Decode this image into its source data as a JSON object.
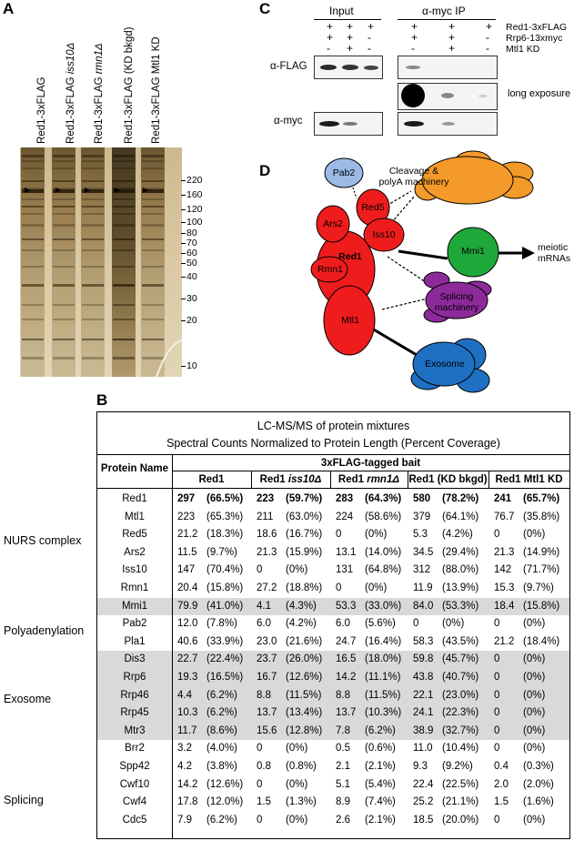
{
  "panel_a": {
    "letter": "A",
    "lanes": [
      {
        "plain": "Red1-3xFLAG",
        "italic": ""
      },
      {
        "plain": "Red1-3xFLAG ",
        "italic": "iss10Δ"
      },
      {
        "plain": "Red1-3xFLAG ",
        "italic": "rmn1Δ"
      },
      {
        "plain": "Red1-3xFLAG (KD bkgd)",
        "italic": ""
      },
      {
        "plain": "Red1-3xFLAG Mtl1 KD",
        "italic": ""
      }
    ],
    "markers": [
      "220",
      "160",
      "120",
      "100",
      "80",
      "70",
      "60",
      "50",
      "40",
      "30",
      "20",
      "10"
    ]
  },
  "panel_c": {
    "letter": "C",
    "input_header": "Input",
    "ip_header": "α-myc IP",
    "row_labels": [
      "Red1-3xFLAG",
      "Rrp6-13xmyc",
      "Mtl1 KD"
    ],
    "input_signs": [
      [
        "+",
        "+",
        "+"
      ],
      [
        "+",
        "+",
        "-"
      ],
      [
        "-",
        "+",
        "-"
      ]
    ],
    "ip_signs": [
      [
        "+",
        "+",
        "+"
      ],
      [
        "+",
        "+",
        "-"
      ],
      [
        "-",
        "+",
        "-"
      ]
    ],
    "blot_flag": "α-FLAG",
    "blot_long": "long exposure",
    "blot_myc": "α-myc"
  },
  "panel_d": {
    "letter": "D",
    "nodes": {
      "red1": "Red1",
      "ars2": "Ars2",
      "red5": "Red5",
      "iss10": "Iss10",
      "rmn1": "Rmn1",
      "mtl1": "Mtl1",
      "pab2": "Pab2",
      "cleavage": "Cleavage &\npolyA machinery",
      "mmi1": "Mmi1",
      "splicing": "Splicing\nmachinery",
      "exosome": "Exosome"
    },
    "target": "meiotic\nmRNAs"
  },
  "panel_b": {
    "letter": "B",
    "title1": "LC-MS/MS of protein mixtures",
    "title2": "Spectral Counts Normalized to Protein Length (Percent Coverage)",
    "bait_header": "3xFLAG-tagged bait",
    "protein_header": "Protein Name",
    "columns": [
      {
        "plain": "Red1",
        "italic": ""
      },
      {
        "plain": "Red1 ",
        "italic": "iss10Δ"
      },
      {
        "plain": "Red1 ",
        "italic": "rmn1Δ"
      },
      {
        "plain": "Red1 (KD bkgd)",
        "italic": ""
      },
      {
        "plain": "Red1 Mtl1 KD",
        "italic": ""
      }
    ],
    "groups": [
      "NURS complex",
      "Polyadenylation",
      "Exosome",
      "Splicing"
    ],
    "rows": [
      {
        "name": "Red1",
        "values": [
          "297",
          "223",
          "283",
          "580",
          "241"
        ],
        "pcts": [
          "(66.5%)",
          "(59.7%)",
          "(64.3%)",
          "(78.2%)",
          "(65.7%)"
        ],
        "bold": true,
        "shaded": false
      },
      {
        "name": "Mtl1",
        "values": [
          "223",
          "211",
          "224",
          "379",
          "76.7"
        ],
        "pcts": [
          "(65.3%)",
          "(63.0%)",
          "(58.6%)",
          "(64.1%)",
          "(35.8%)"
        ],
        "bold": false,
        "shaded": false
      },
      {
        "name": "Red5",
        "values": [
          "21.2",
          "18.6",
          "0",
          "5.3",
          "0"
        ],
        "pcts": [
          "(18.3%)",
          "(16.7%)",
          "(0%)",
          "(4.2%)",
          "(0%)"
        ],
        "bold": false,
        "shaded": false
      },
      {
        "name": "Ars2",
        "values": [
          "11.5",
          "21.3",
          "13.1",
          "34.5",
          "21.3"
        ],
        "pcts": [
          "(9.7%)",
          "(15.9%)",
          "(14.0%)",
          "(29.4%)",
          "(14.9%)"
        ],
        "bold": false,
        "shaded": false
      },
      {
        "name": "Iss10",
        "values": [
          "147",
          "0",
          "131",
          "312",
          "142"
        ],
        "pcts": [
          "(70.4%)",
          "(0%)",
          "(64.8%)",
          "(88.0%)",
          "(71.7%)"
        ],
        "bold": false,
        "shaded": false
      },
      {
        "name": "Rmn1",
        "values": [
          "20.4",
          "27.2",
          "0",
          "11.9",
          "15.3"
        ],
        "pcts": [
          "(15.8%)",
          "(18.8%)",
          "(0%)",
          "(13.9%)",
          "(9.7%)"
        ],
        "bold": false,
        "shaded": false
      },
      {
        "name": "Mmi1",
        "values": [
          "79.9",
          "4.1",
          "53.3",
          "84.0",
          "18.4"
        ],
        "pcts": [
          "(41.0%)",
          "(4.3%)",
          "(33.0%)",
          "(53.3%)",
          "(15.8%)"
        ],
        "bold": false,
        "shaded": true
      },
      {
        "name": "Pab2",
        "values": [
          "12.0",
          "6.0",
          "6.0",
          "0",
          "0"
        ],
        "pcts": [
          "(7.8%)",
          "(4.2%)",
          "(5.6%)",
          "(0%)",
          "(0%)"
        ],
        "bold": false,
        "shaded": false
      },
      {
        "name": "Pla1",
        "values": [
          "40.6",
          "23.0",
          "24.7",
          "58.3",
          "21.2"
        ],
        "pcts": [
          "(33.9%)",
          "(21.6%)",
          "(16.4%)",
          "(43.5%)",
          "(18.4%)"
        ],
        "bold": false,
        "shaded": false
      },
      {
        "name": "Dis3",
        "values": [
          "22.7",
          "23.7",
          "16.5",
          "59.8",
          "0"
        ],
        "pcts": [
          "(22.4%)",
          "(26.0%)",
          "(18.0%)",
          "(45.7%)",
          "(0%)"
        ],
        "bold": false,
        "shaded": true
      },
      {
        "name": "Rrp6",
        "values": [
          "19.3",
          "16.7",
          "14.2",
          "43.8",
          "0"
        ],
        "pcts": [
          "(16.5%)",
          "(12.6%)",
          "(11.1%)",
          "(40.7%)",
          "(0%)"
        ],
        "bold": false,
        "shaded": true
      },
      {
        "name": "Rrp46",
        "values": [
          "4.4",
          "8.8",
          "8.8",
          "22.1",
          "0"
        ],
        "pcts": [
          "(6.2%)",
          "(11.5%)",
          "(11.5%)",
          "(23.0%)",
          "(0%)"
        ],
        "bold": false,
        "shaded": true
      },
      {
        "name": "Rrp45",
        "values": [
          "10.3",
          "13.7",
          "13.7",
          "24.1",
          "0"
        ],
        "pcts": [
          "(6.2%)",
          "(13.4%)",
          "(10.3%)",
          "(22.3%)",
          "(0%)"
        ],
        "bold": false,
        "shaded": true
      },
      {
        "name": "Mtr3",
        "values": [
          "11.7",
          "15.6",
          "7.8",
          "38.9",
          "0"
        ],
        "pcts": [
          "(8.6%)",
          "(12.8%)",
          "(6.2%)",
          "(32.7%)",
          "(0%)"
        ],
        "bold": false,
        "shaded": true
      },
      {
        "name": "Brr2",
        "values": [
          "3.2",
          "0",
          "0.5",
          "11.0",
          "0"
        ],
        "pcts": [
          "(4.0%)",
          "(0%)",
          "(0.6%)",
          "(10.4%)",
          "(0%)"
        ],
        "bold": false,
        "shaded": false
      },
      {
        "name": "Spp42",
        "values": [
          "4.2",
          "0.8",
          "2.1",
          "9.3",
          "0.4"
        ],
        "pcts": [
          "(3.8%)",
          "(0.8%)",
          "(2.1%)",
          "(9.2%)",
          "(0.3%)"
        ],
        "bold": false,
        "shaded": false
      },
      {
        "name": "Cwf10",
        "values": [
          "14.2",
          "0",
          "5.1",
          "22.4",
          "2.0"
        ],
        "pcts": [
          "(12.6%)",
          "(0%)",
          "(5.4%)",
          "(22.5%)",
          "(2.0%)"
        ],
        "bold": false,
        "shaded": false
      },
      {
        "name": "Cwf4",
        "values": [
          "17.8",
          "1.5",
          "8.9",
          "25.2",
          "1.5"
        ],
        "pcts": [
          "(12.0%)",
          "(1.3%)",
          "(7.4%)",
          "(21.1%)",
          "(1.6%)"
        ],
        "bold": false,
        "shaded": false
      },
      {
        "name": "Cdc5",
        "values": [
          "7.9",
          "0",
          "2.6",
          "18.5",
          "0"
        ],
        "pcts": [
          "(6.2%)",
          "(0%)",
          "(2.1%)",
          "(20.0%)",
          "(0%)"
        ],
        "bold": false,
        "shaded": false
      }
    ]
  }
}
